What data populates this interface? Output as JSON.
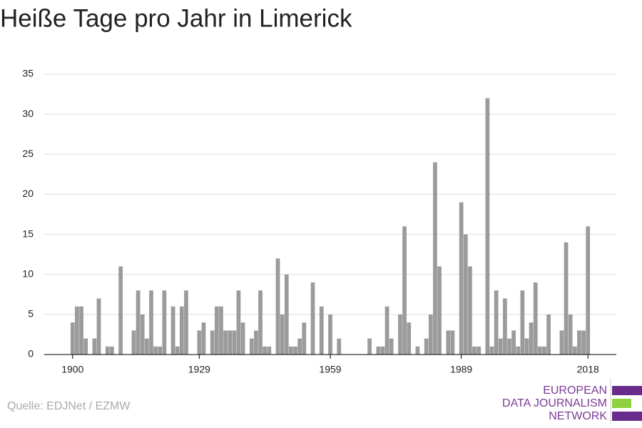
{
  "chart_data": {
    "type": "bar",
    "title": "Heiße Tage pro Jahr in Limerick",
    "source": "Quelle: EDJNet / EZMW",
    "logo": [
      "EUROPEAN",
      "DATA JOURNALISM",
      "NETWORK"
    ],
    "x": [
      1900,
      1901,
      1902,
      1903,
      1904,
      1905,
      1906,
      1907,
      1908,
      1909,
      1910,
      1911,
      1912,
      1913,
      1914,
      1915,
      1916,
      1917,
      1918,
      1919,
      1920,
      1921,
      1922,
      1923,
      1924,
      1925,
      1926,
      1927,
      1928,
      1929,
      1930,
      1931,
      1932,
      1933,
      1934,
      1935,
      1936,
      1937,
      1938,
      1939,
      1940,
      1941,
      1942,
      1943,
      1944,
      1945,
      1946,
      1947,
      1948,
      1949,
      1950,
      1951,
      1952,
      1953,
      1954,
      1955,
      1956,
      1957,
      1958,
      1959,
      1960,
      1961,
      1962,
      1963,
      1964,
      1965,
      1966,
      1967,
      1968,
      1969,
      1970,
      1971,
      1972,
      1973,
      1974,
      1975,
      1976,
      1977,
      1978,
      1979,
      1980,
      1981,
      1982,
      1983,
      1984,
      1985,
      1986,
      1987,
      1988,
      1989,
      1990,
      1991,
      1992,
      1993,
      1994,
      1995,
      1996,
      1997,
      1998,
      1999,
      2000,
      2001,
      2002,
      2003,
      2004,
      2005,
      2006,
      2007,
      2008,
      2009,
      2010,
      2011,
      2012,
      2013,
      2014,
      2015,
      2016,
      2017,
      2018
    ],
    "values": [
      4,
      6,
      6,
      2,
      0,
      2,
      7,
      0,
      1,
      1,
      0,
      11,
      0,
      0,
      3,
      8,
      5,
      2,
      8,
      1,
      1,
      8,
      0,
      6,
      1,
      6,
      8,
      0,
      0,
      3,
      4,
      0,
      3,
      6,
      6,
      3,
      3,
      3,
      8,
      4,
      0,
      2,
      3,
      8,
      1,
      1,
      0,
      12,
      5,
      10,
      1,
      1,
      2,
      4,
      0,
      9,
      0,
      6,
      0,
      5,
      0,
      2,
      0,
      0,
      0,
      0,
      0,
      0,
      2,
      0,
      1,
      1,
      6,
      2,
      0,
      5,
      16,
      4,
      0,
      1,
      0,
      2,
      5,
      24,
      11,
      0,
      3,
      3,
      0,
      19,
      15,
      11,
      1,
      1,
      0,
      32,
      1,
      8,
      2,
      7,
      2,
      3,
      1,
      8,
      2,
      4,
      9,
      1,
      1,
      5,
      0,
      0,
      3,
      14,
      5,
      1,
      3,
      3,
      16
    ],
    "color": "#9b9b9b",
    "xlim": [
      1893.5,
      2024.5
    ],
    "xticks": [
      1900,
      1929,
      1959,
      1989,
      2018
    ],
    "ylim": [
      0,
      35
    ],
    "yticks": [
      0,
      5,
      10,
      15,
      20,
      25,
      30,
      35
    ],
    "grid": true
  }
}
